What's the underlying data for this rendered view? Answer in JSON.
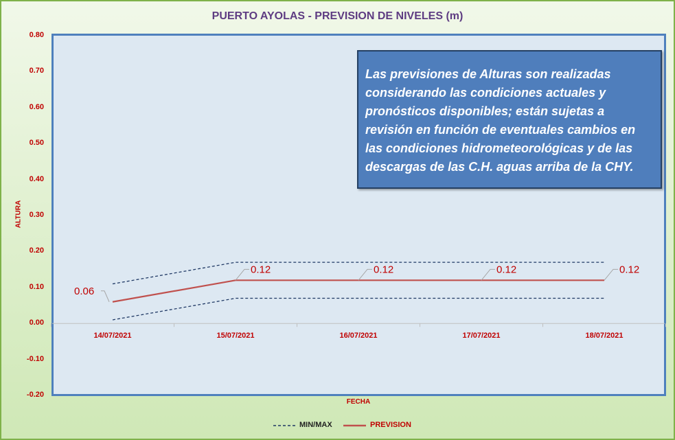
{
  "chart_data": {
    "type": "line",
    "title": "PUERTO AYOLAS - PREVISION DE NIVELES (m)",
    "xlabel": "FECHA",
    "ylabel": "ALTURA",
    "ylim": [
      -0.2,
      0.8
    ],
    "y_ticks": [
      "0.80",
      "0.70",
      "0.60",
      "0.50",
      "0.40",
      "0.30",
      "0.20",
      "0.10",
      "0.00",
      "-0.10",
      "-0.20"
    ],
    "y_tick_values": [
      0.8,
      0.7,
      0.6,
      0.5,
      0.4,
      0.3,
      0.2,
      0.1,
      0.0,
      -0.1,
      -0.2
    ],
    "categories": [
      "14/07/2021",
      "15/07/2021",
      "16/07/2021",
      "17/07/2021",
      "18/07/2021"
    ],
    "series": [
      {
        "name": "MIN/MAX",
        "style": "dashed",
        "color": "#1f3864",
        "values": [
          0.11,
          0.17,
          0.17,
          0.17,
          0.17
        ]
      },
      {
        "name": "MIN/MAX",
        "style": "dashed",
        "color": "#1f3864",
        "values": [
          0.01,
          0.07,
          0.07,
          0.07,
          0.07
        ]
      },
      {
        "name": "PREVISION",
        "style": "solid",
        "color": "#c0504d",
        "values": [
          0.06,
          0.12,
          0.12,
          0.12,
          0.12
        ]
      }
    ],
    "data_labels": [
      "0.06",
      "0.12",
      "0.12",
      "0.12",
      "0.12"
    ],
    "grid": false,
    "legend_position": "bottom"
  },
  "note": {
    "lines": [
      "Las previsiones de Alturas son realizadas",
      "considerando las condiciones actuales y",
      "pronósticos disponibles;  están sujetas a",
      "revisión en función de eventuales cambios en",
      "las condiciones hidrometeorológicas y de las",
      "descargas de las C.H. aguas arriba de la CHY."
    ]
  },
  "legend": {
    "minmax_label": "MIN/MAX",
    "prevision_label": "PREVISION"
  },
  "colors": {
    "label_red": "#c00000",
    "prevision": "#c0504d",
    "minmax": "#1f3864",
    "note_bg": "#4f7ebc",
    "title": "#5e3c82"
  }
}
